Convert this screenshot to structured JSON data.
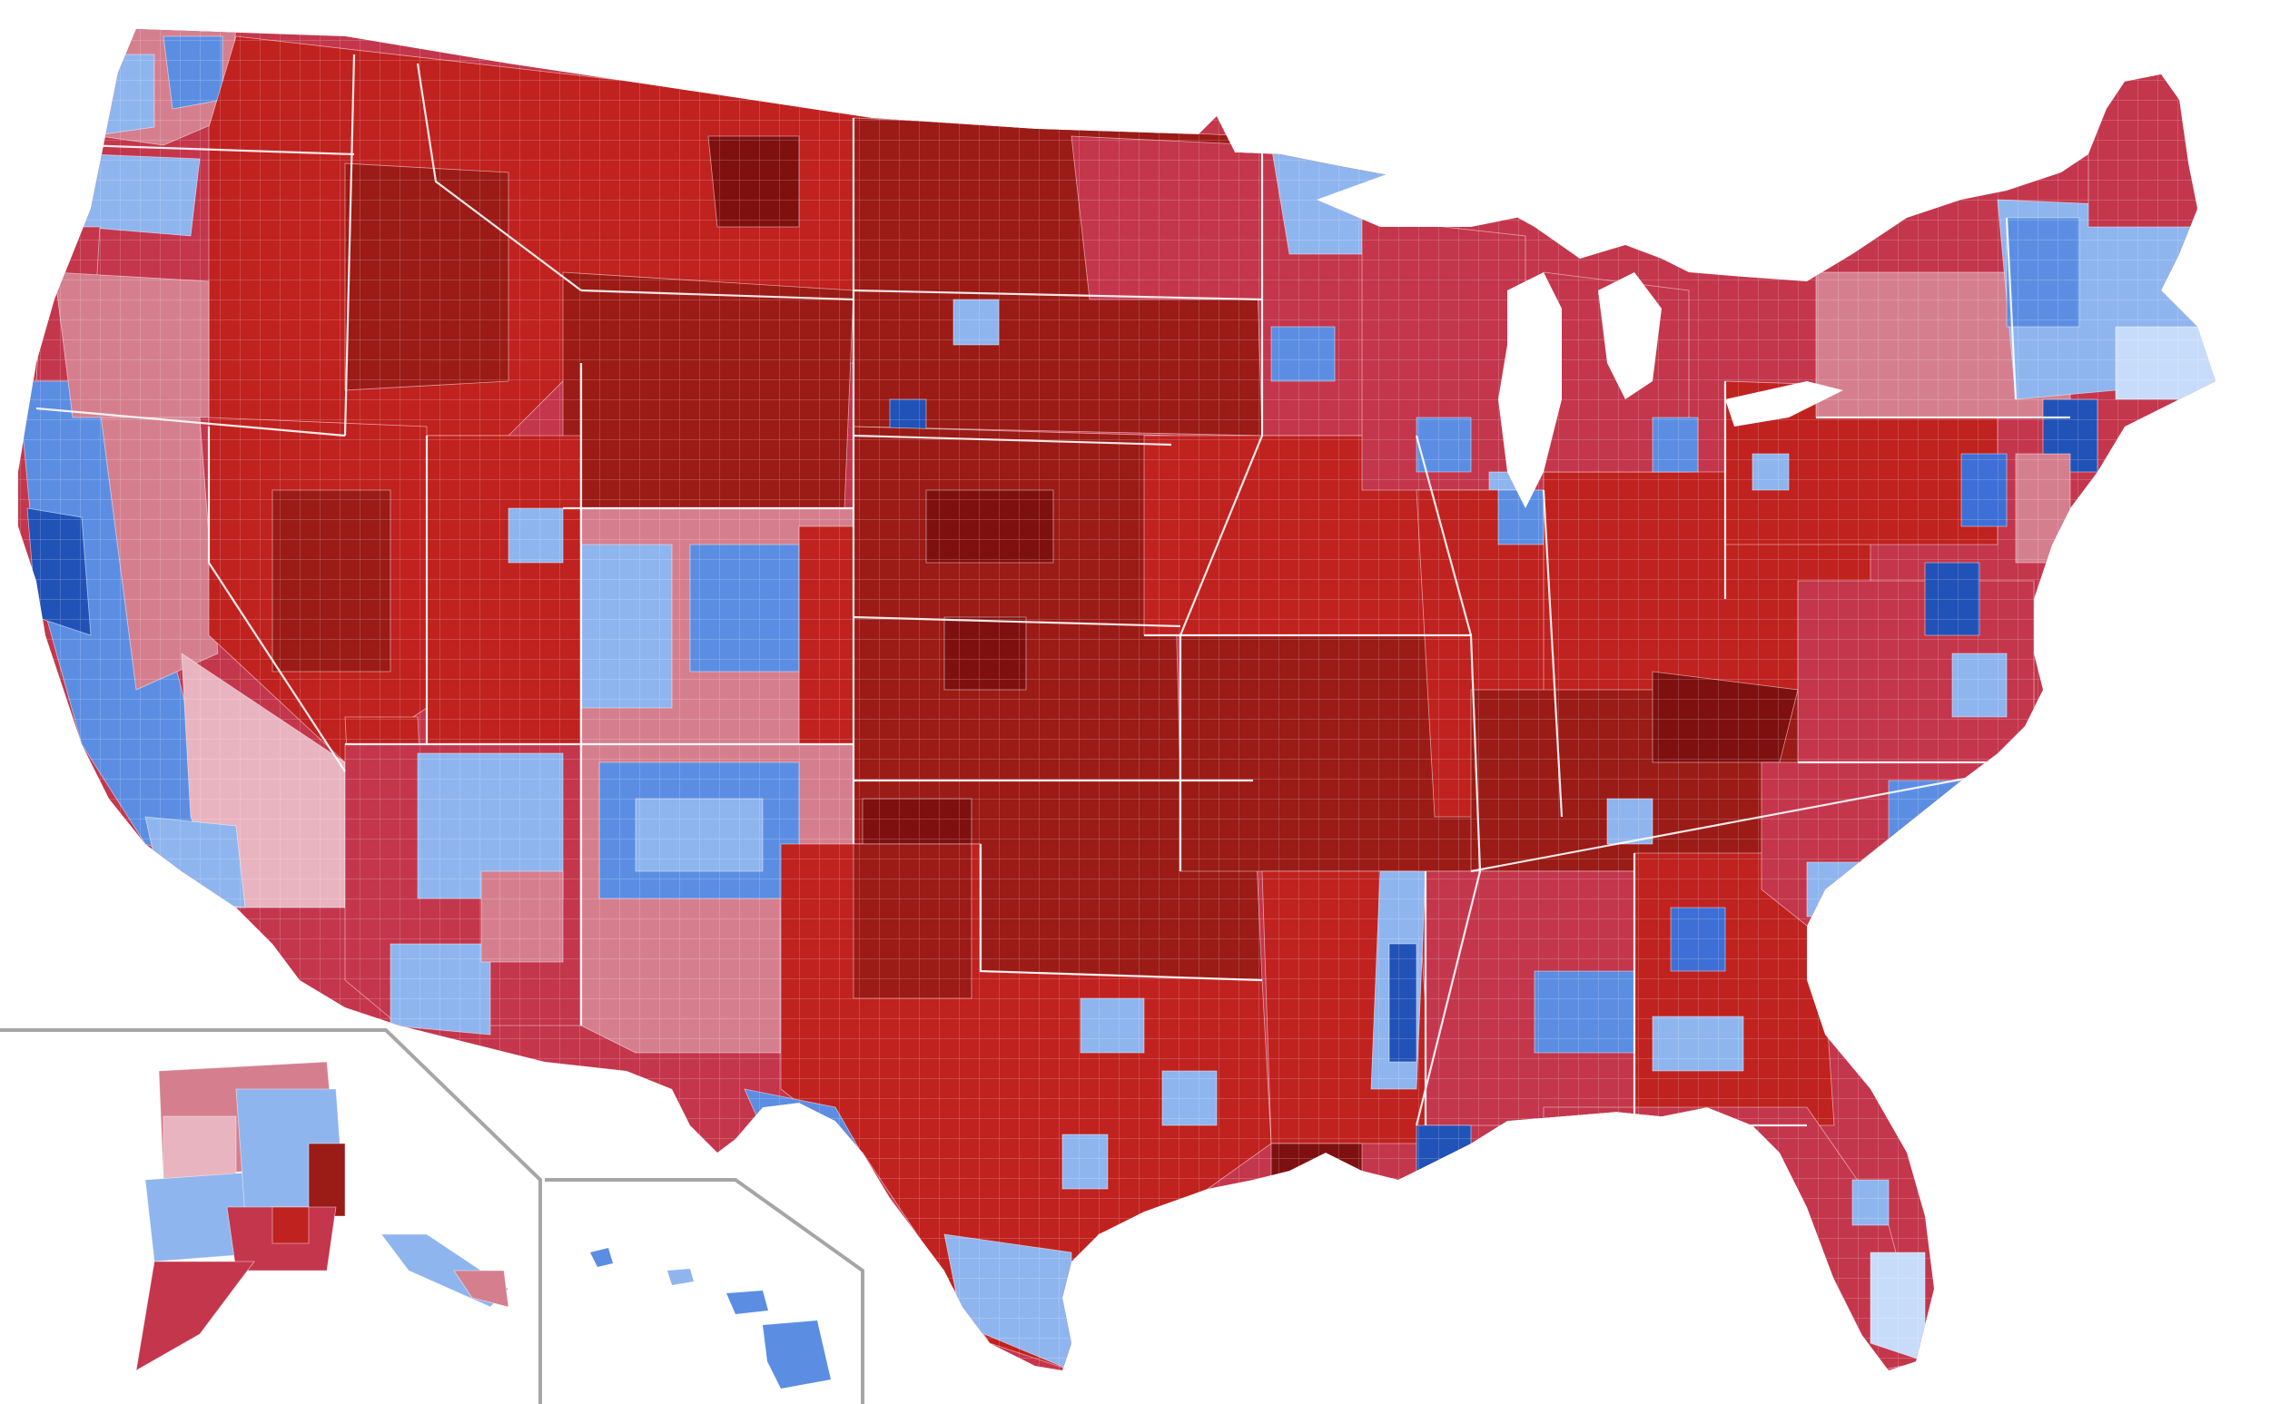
{
  "map": {
    "type": "choropleth",
    "subject": "county results",
    "palette": {
      "rep_90": "#7f1010",
      "rep_80": "#9b1b17",
      "rep_70": "#c0221f",
      "rep_60": "#c4364c",
      "rep_50": "#d57f8e",
      "rep_40": "#e8b4bf",
      "dem_40": "#c7dcfb",
      "dem_50": "#8fb5ef",
      "dem_60": "#5b8ee3",
      "dem_70": "#3e6fd6",
      "dem_80": "#2152b8"
    },
    "regions": [
      "contiguous-us",
      "alaska-inset",
      "hawaii-inset"
    ]
  }
}
